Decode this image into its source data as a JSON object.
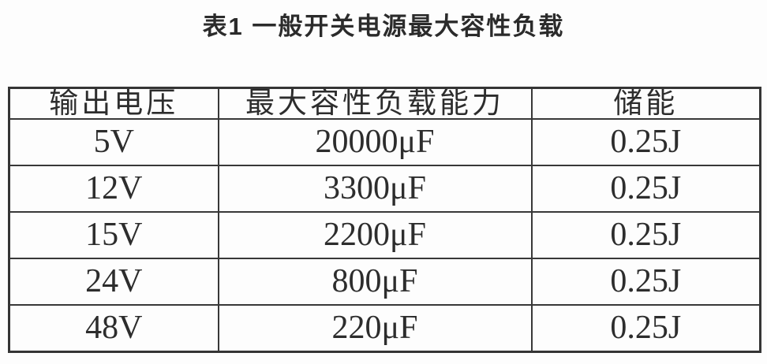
{
  "title": "表1  一般开关电源最大容性负载",
  "table": {
    "headers": [
      "输出电压",
      "最大容性负载能力",
      "储能"
    ],
    "rows": [
      [
        "5V",
        "20000μF",
        "0.25J"
      ],
      [
        "12V",
        "3300μF",
        "0.25J"
      ],
      [
        "15V",
        "2200μF",
        "0.25J"
      ],
      [
        "24V",
        "800μF",
        "0.25J"
      ],
      [
        "48V",
        "220μF",
        "0.25J"
      ]
    ]
  },
  "colors": {
    "background": "#fdfdfd",
    "border": "#383838",
    "text": "#2d2d2d"
  }
}
